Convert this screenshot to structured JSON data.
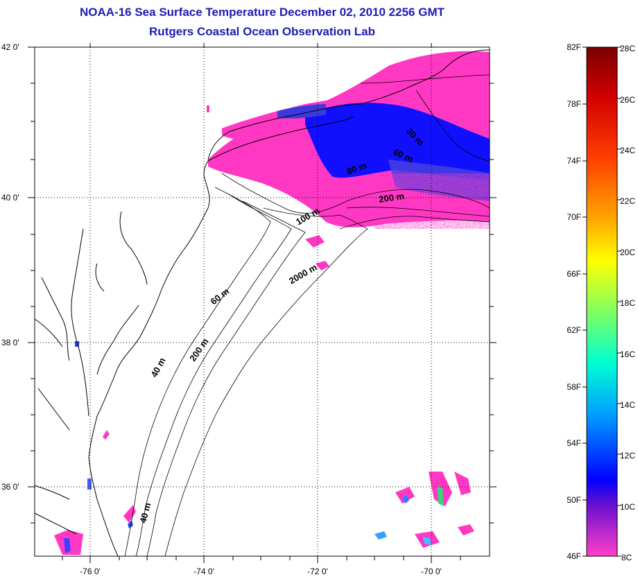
{
  "title": {
    "line1": "NOAA-16 Sea Surface Temperature December 02, 2010 2256 GMT",
    "line2": "Rutgers Coastal Ocean Observation Lab"
  },
  "map": {
    "lat_labels": [
      "42 0'",
      "40 0'",
      "38 0'",
      "36 0'"
    ],
    "lon_labels": [
      "-76 0'",
      "-74 0'",
      "-72 0'",
      "-70 0'"
    ],
    "isobath_labels": [
      "30 m",
      "60 m",
      "80 m",
      "200 m",
      "100 m",
      "2000 m",
      "60 m",
      "200 m",
      "40 m",
      "40 m"
    ],
    "land_color": "#ffffff",
    "grid": "dotted"
  },
  "colorbar": {
    "fahrenheit_labels": [
      "82F",
      "78F",
      "74F",
      "70F",
      "66F",
      "62F",
      "58F",
      "54F",
      "50F",
      "46F"
    ],
    "celsius_labels": [
      "28C",
      "26C",
      "24C",
      "22C",
      "20C",
      "18C",
      "16C",
      "14C",
      "12C",
      "10C",
      "8C"
    ],
    "colors": [
      "#7f0000",
      "#ff0000",
      "#ff8000",
      "#ffff00",
      "#80ff80",
      "#00ffff",
      "#0080ff",
      "#0000ff",
      "#8000c0",
      "#ff40c0"
    ]
  }
}
